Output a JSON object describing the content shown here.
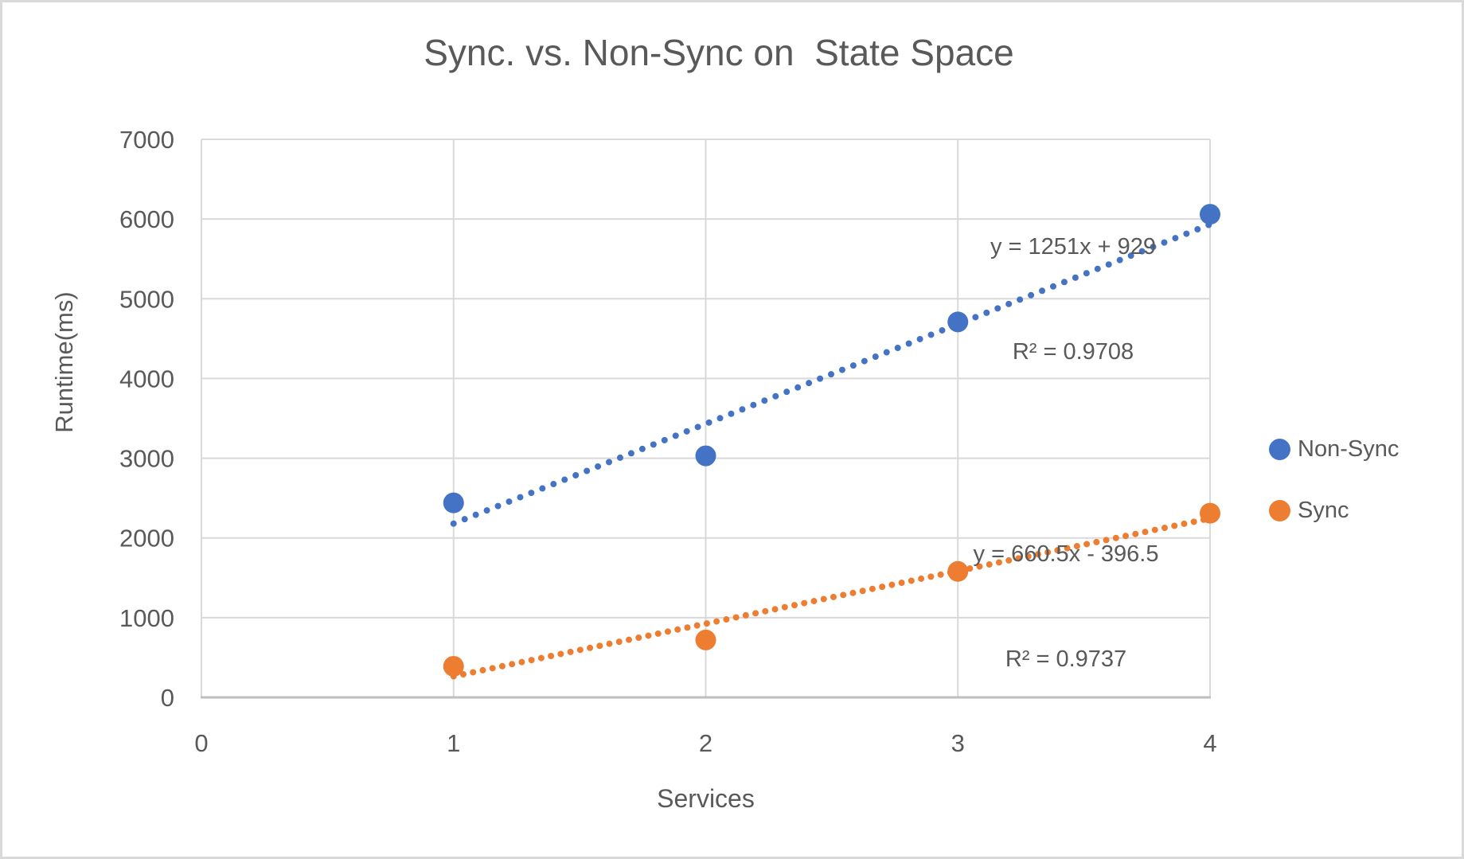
{
  "chart_data": {
    "type": "scatter",
    "title": "Sync. vs. Non-Sync on  State Space",
    "xlabel": "Services",
    "ylabel": "Runtime(ms)",
    "xlim": [
      0,
      4
    ],
    "ylim": [
      0,
      7000
    ],
    "xticks": [
      0,
      1,
      2,
      3,
      4
    ],
    "yticks": [
      0,
      1000,
      2000,
      3000,
      4000,
      5000,
      6000,
      7000
    ],
    "grid": true,
    "legend_position": "right",
    "colors": {
      "text": "#595959",
      "gridline": "#D9D9D9",
      "axis": "#BFBFBF",
      "background": "#FFFFFF",
      "frame": "#D9D9D9"
    },
    "series": [
      {
        "name": "Non-Sync",
        "color": "#4472C4",
        "x": [
          1,
          2,
          3,
          4
        ],
        "y": [
          2440,
          3030,
          4710,
          6060
        ],
        "trendline": {
          "style": "dotted",
          "slope": 1251,
          "intercept": 929,
          "x_start": 1,
          "x_end": 4,
          "equation": "y = 1251x + 929",
          "r_squared": "R² = 0.9708"
        }
      },
      {
        "name": "Sync",
        "color": "#ED7D31",
        "x": [
          1,
          2,
          3,
          4
        ],
        "y": [
          390,
          720,
          1580,
          2310
        ],
        "trendline": {
          "style": "dotted",
          "slope": 660.5,
          "intercept": -396.5,
          "x_start": 1,
          "x_end": 4,
          "equation": "y = 660.5x - 396.5",
          "r_squared": "R² = 0.9737"
        }
      }
    ]
  }
}
